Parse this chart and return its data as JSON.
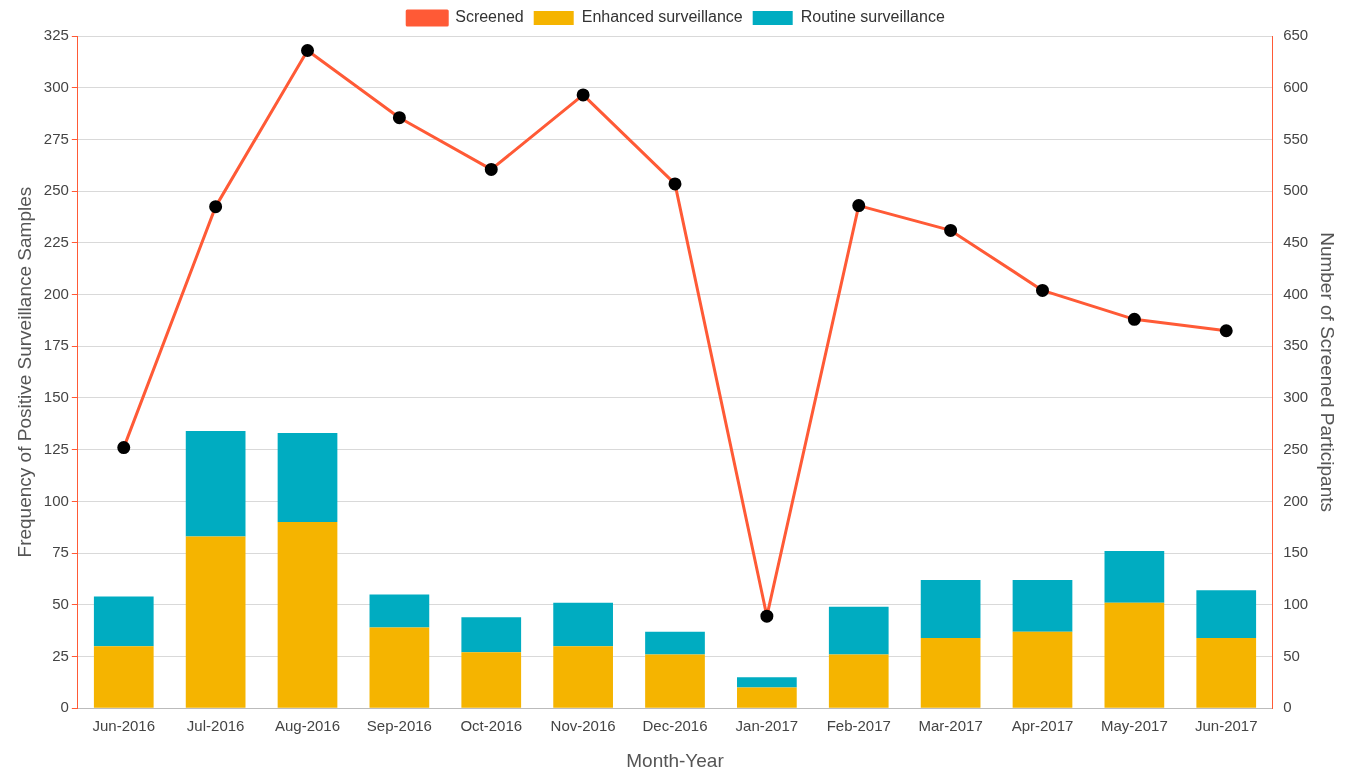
{
  "chart_data": {
    "type": "bar",
    "stacked": true,
    "xlabel": "Month-Year",
    "ylabel": "Frequency of Positive Surveillance Samples",
    "y2label": "Number of Screened Participants",
    "categories": [
      "Jun-2016",
      "Jul-2016",
      "Aug-2016",
      "Sep-2016",
      "Oct-2016",
      "Nov-2016",
      "Dec-2016",
      "Jan-2017",
      "Feb-2017",
      "Mar-2017",
      "Apr-2017",
      "May-2017",
      "Jun-2017"
    ],
    "series": [
      {
        "name": "Enhanced surveillance",
        "color": "#f5b400",
        "values": [
          30,
          83,
          90,
          39,
          27,
          30,
          26,
          10,
          26,
          34,
          37,
          51,
          34
        ]
      },
      {
        "name": "Routine surveillance",
        "color": "#00acc1",
        "values": [
          24,
          51,
          43,
          16,
          17,
          21,
          11,
          5,
          23,
          28,
          25,
          25,
          23
        ]
      },
      {
        "name": "Screened",
        "type": "line",
        "axis": "y2",
        "color": "#ff5a36",
        "marker": "circle",
        "values": [
          252,
          485,
          636,
          571,
          521,
          593,
          507,
          89,
          486,
          462,
          404,
          376,
          365
        ]
      }
    ],
    "ylim": [
      0,
      325
    ],
    "yticks": [
      0,
      25,
      50,
      75,
      100,
      125,
      150,
      175,
      200,
      225,
      250,
      275,
      300,
      325
    ],
    "y2lim": [
      0,
      650
    ],
    "y2ticks": [
      0,
      50,
      100,
      150,
      200,
      250,
      300,
      350,
      400,
      450,
      500,
      550,
      600,
      650
    ],
    "grid": "y",
    "legend": "top"
  }
}
